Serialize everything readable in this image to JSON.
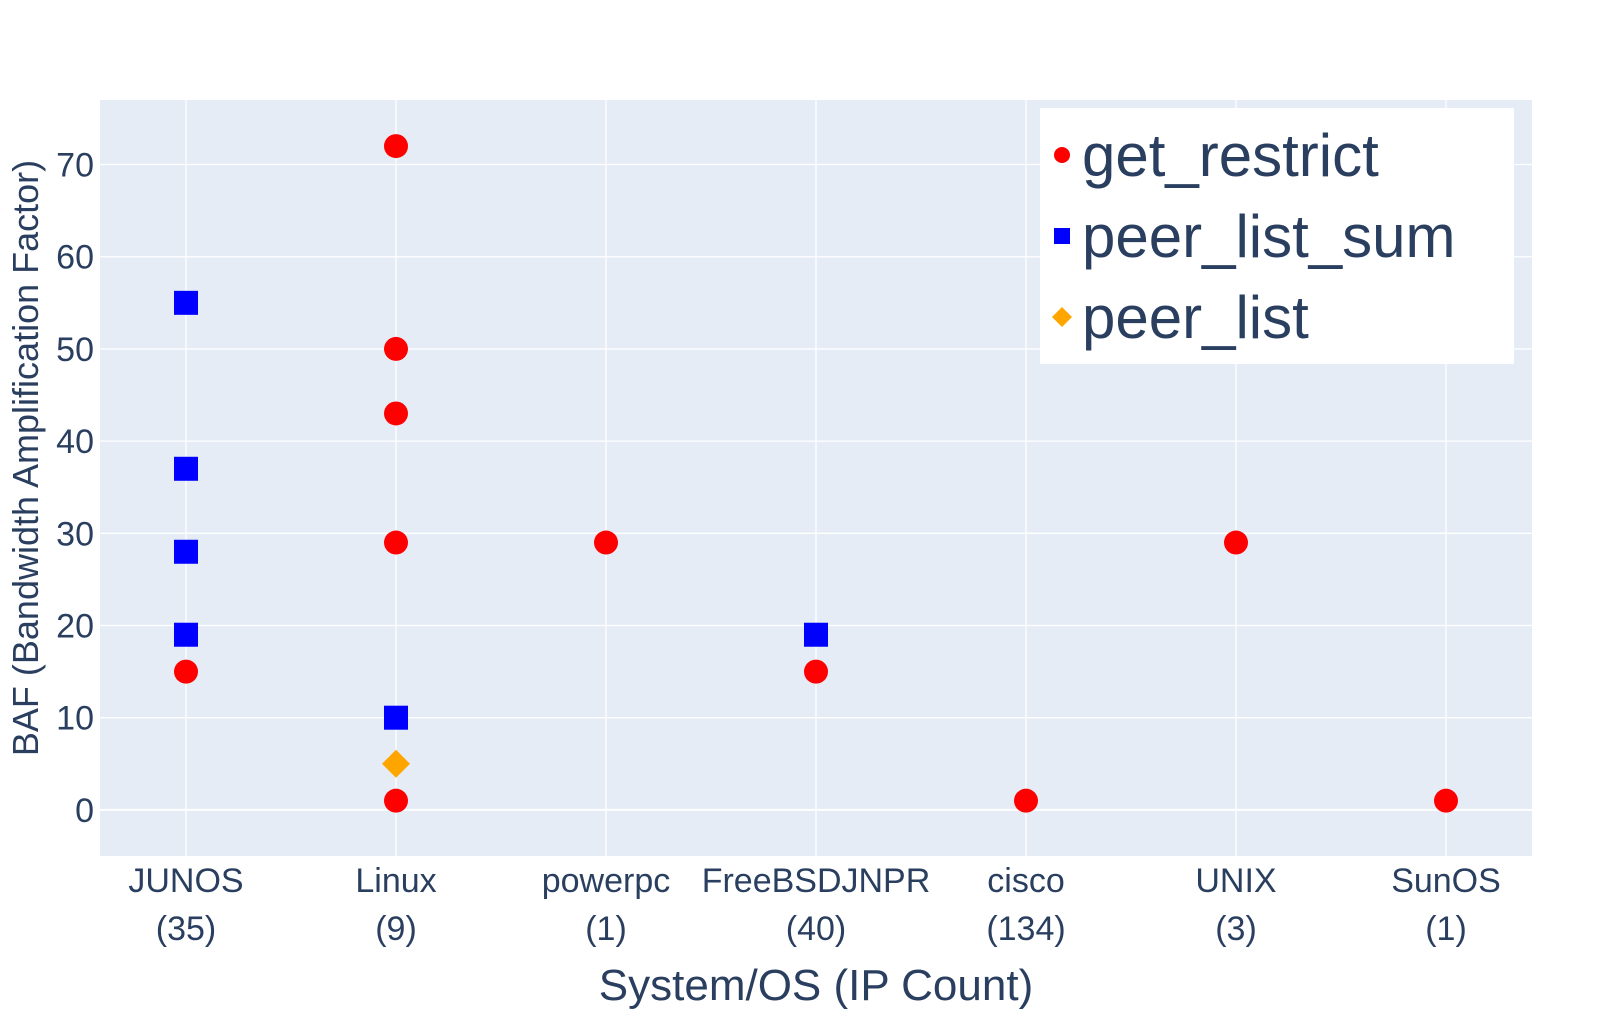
{
  "chart_data": {
    "type": "scatter",
    "xlabel": "System/OS (IP Count)",
    "ylabel": "BAF (Bandwidth Amplification Factor)",
    "ylim": [
      -5,
      77
    ],
    "yticks": [
      0,
      10,
      20,
      30,
      40,
      50,
      60,
      70
    ],
    "grid": true,
    "legend_position": "top-right",
    "categories": [
      {
        "name": "JUNOS",
        "count": "(35)"
      },
      {
        "name": "Linux",
        "count": "(9)"
      },
      {
        "name": "powerpc",
        "count": "(1)"
      },
      {
        "name": "FreeBSDJNPR",
        "count": "(40)"
      },
      {
        "name": "cisco",
        "count": "(134)"
      },
      {
        "name": "UNIX",
        "count": "(3)"
      },
      {
        "name": "SunOS",
        "count": "(1)"
      }
    ],
    "series": [
      {
        "name": "get_restrict",
        "marker": "circle",
        "color": "#ff0000",
        "points": [
          {
            "x": "JUNOS",
            "y": 15
          },
          {
            "x": "Linux",
            "y": 72
          },
          {
            "x": "Linux",
            "y": 50
          },
          {
            "x": "Linux",
            "y": 43
          },
          {
            "x": "Linux",
            "y": 29
          },
          {
            "x": "Linux",
            "y": 1
          },
          {
            "x": "powerpc",
            "y": 29
          },
          {
            "x": "FreeBSDJNPR",
            "y": 15
          },
          {
            "x": "cisco",
            "y": 1
          },
          {
            "x": "UNIX",
            "y": 29
          },
          {
            "x": "SunOS",
            "y": 1
          }
        ]
      },
      {
        "name": "peer_list_sum",
        "marker": "square",
        "color": "#0000ff",
        "points": [
          {
            "x": "JUNOS",
            "y": 55
          },
          {
            "x": "JUNOS",
            "y": 37
          },
          {
            "x": "JUNOS",
            "y": 28
          },
          {
            "x": "JUNOS",
            "y": 19
          },
          {
            "x": "Linux",
            "y": 10
          },
          {
            "x": "FreeBSDJNPR",
            "y": 19
          }
        ]
      },
      {
        "name": "peer_list",
        "marker": "diamond",
        "color": "#ffa500",
        "points": [
          {
            "x": "Linux",
            "y": 5
          }
        ]
      }
    ]
  },
  "colors": {
    "plot_background": "#e5ecf6",
    "grid": "#ffffff",
    "text": "#2a3f5f"
  }
}
